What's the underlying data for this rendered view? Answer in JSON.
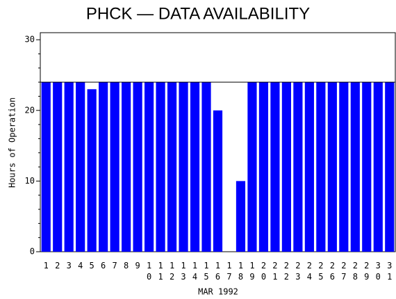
{
  "chart_data": {
    "type": "bar",
    "title": "PHCK — DATA AVAILABILITY",
    "y_label": "Hours of Operation",
    "x_label": "MAR 1992",
    "categories": [
      "1",
      "2",
      "3",
      "4",
      "5",
      "6",
      "7",
      "8",
      "9",
      "10",
      "11",
      "12",
      "13",
      "14",
      "15",
      "16",
      "17",
      "18",
      "19",
      "20",
      "21",
      "22",
      "23",
      "24",
      "25",
      "26",
      "27",
      "28",
      "29",
      "30",
      "31"
    ],
    "values": [
      24,
      24,
      24,
      24,
      23,
      24,
      24,
      24,
      24,
      24,
      24,
      24,
      24,
      24,
      24,
      20,
      0,
      10,
      24,
      24,
      24,
      24,
      24,
      24,
      24,
      24,
      24,
      24,
      24,
      24,
      24
    ],
    "color": "#0000ff",
    "ylim": [
      0,
      31
    ],
    "yticks": [
      0,
      10,
      20,
      30
    ],
    "reference_line": 24
  }
}
